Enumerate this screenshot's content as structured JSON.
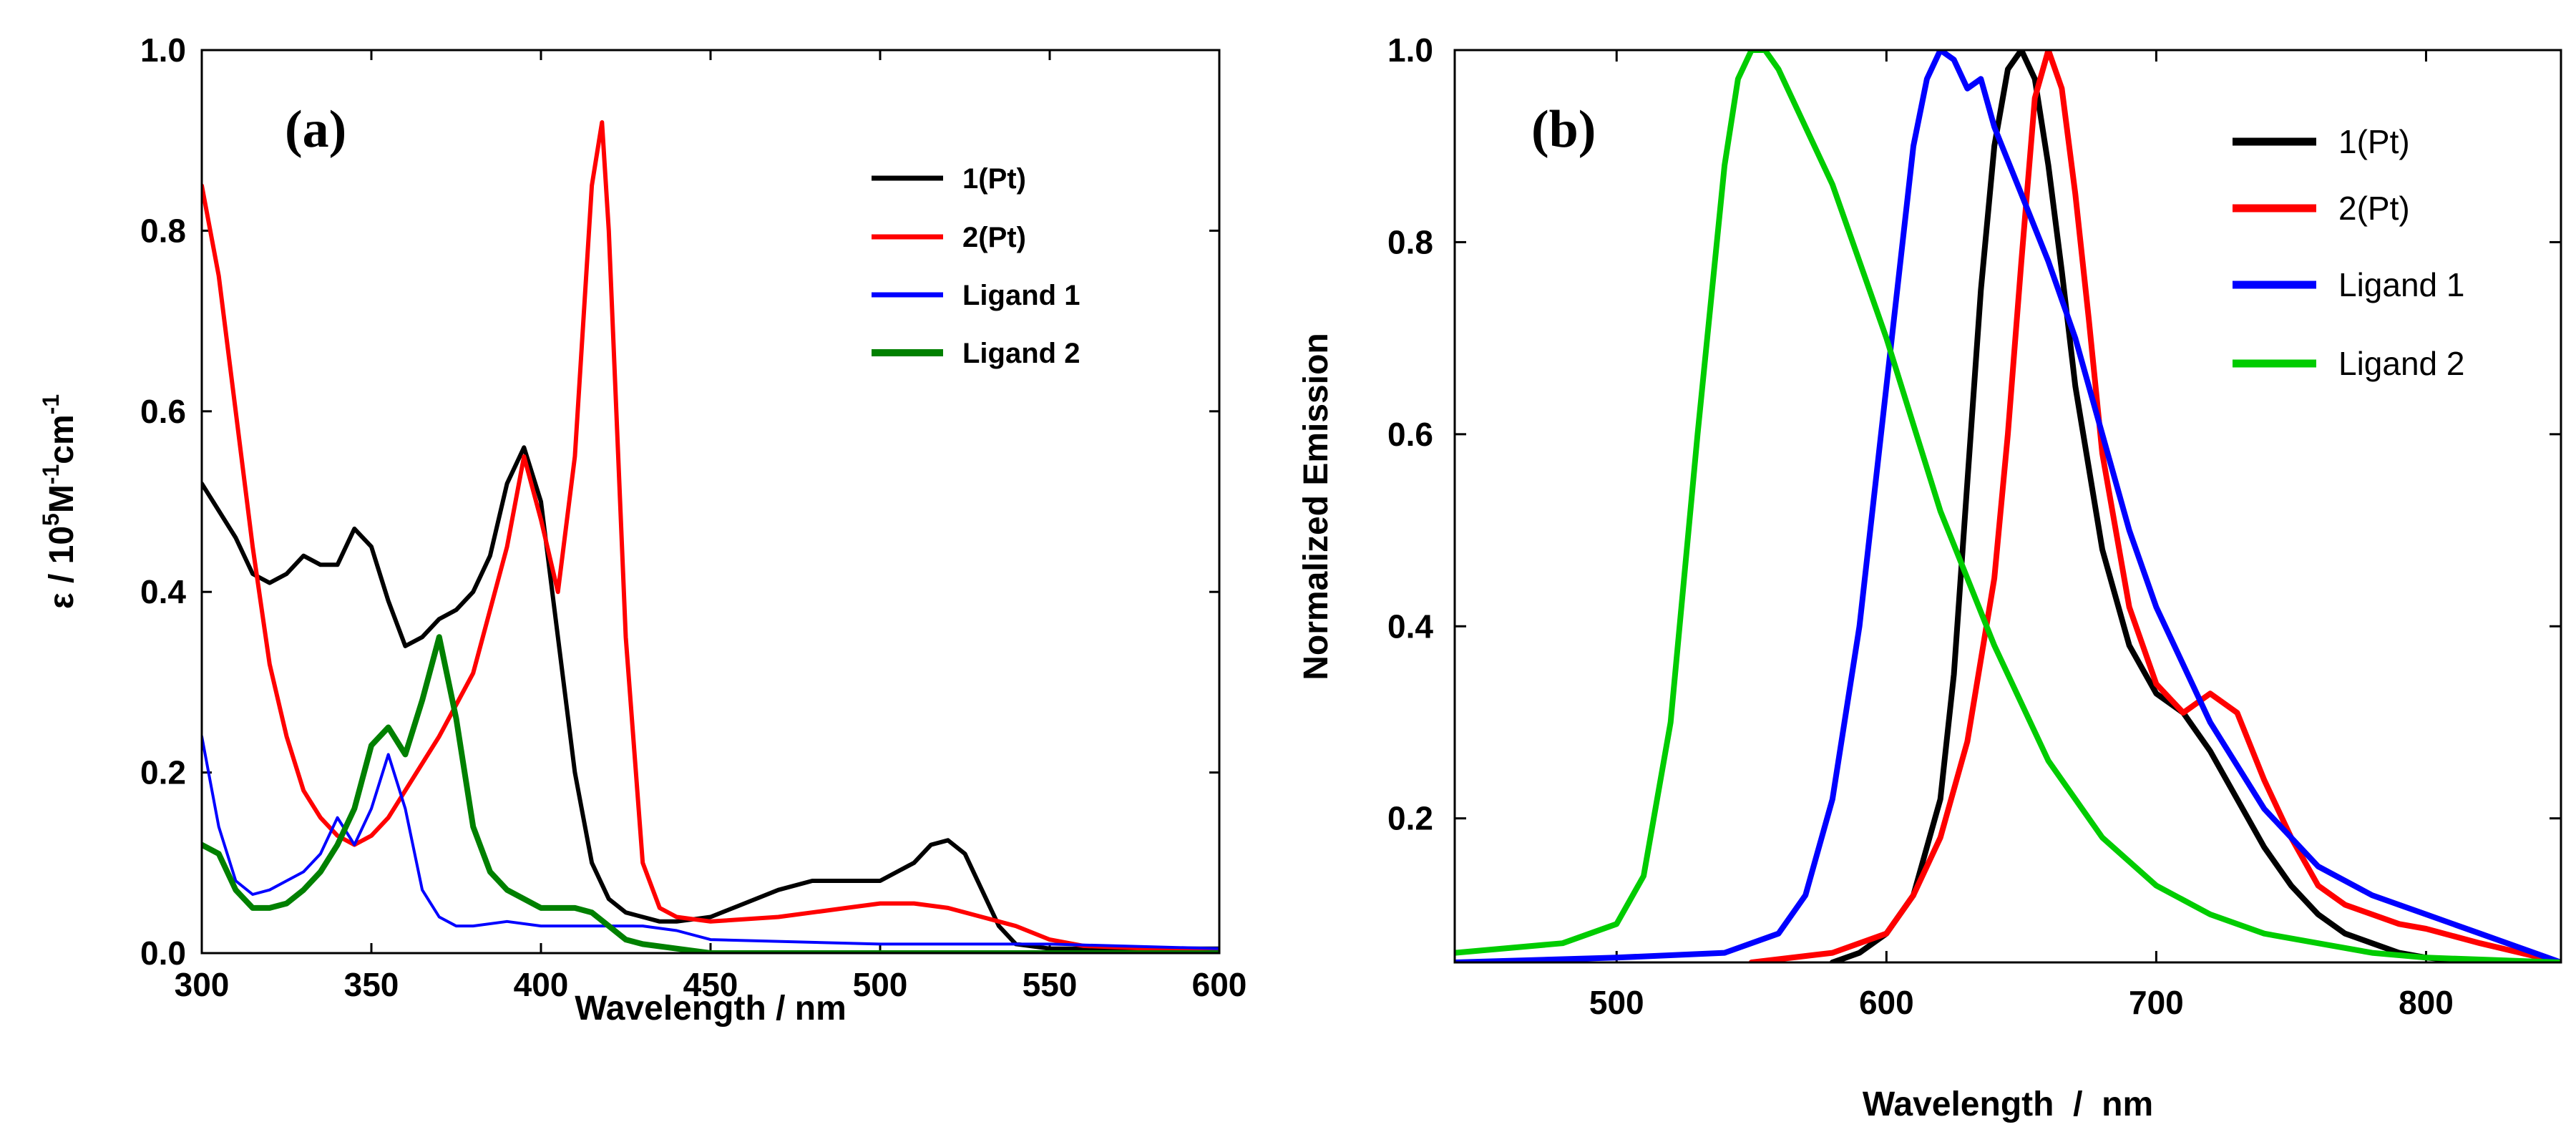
{
  "chart_data": [
    {
      "type": "line",
      "panel_label": "(a)",
      "xlabel": "Wavelength / nm",
      "ylabel": {
        "p1": "ε / 10",
        "sup1": "5",
        "p2": "M",
        "sup2": "-1",
        "p3": "cm",
        "sup3": "-1"
      },
      "xlim": [
        300,
        600
      ],
      "ylim": [
        0,
        1.0
      ],
      "xticks": [
        300,
        350,
        400,
        450,
        500,
        550,
        600
      ],
      "xtick_labels": [
        "300",
        "350",
        "400",
        "450",
        "500",
        "550",
        "600"
      ],
      "yticks": [
        0,
        0.2,
        0.4,
        0.6,
        0.8,
        1.0
      ],
      "ytick_labels": [
        "0.0",
        "0.2",
        "0.4",
        "0.6",
        "0.8",
        "1.0"
      ],
      "legend_position": "top-right",
      "series": [
        {
          "name": "1(Pt)",
          "color": "#000000",
          "x": [
            300,
            305,
            310,
            315,
            320,
            325,
            330,
            335,
            340,
            345,
            350,
            355,
            360,
            365,
            370,
            375,
            380,
            385,
            390,
            395,
            400,
            405,
            410,
            415,
            420,
            425,
            430,
            435,
            440,
            450,
            460,
            470,
            480,
            490,
            500,
            505,
            510,
            515,
            520,
            525,
            530,
            535,
            540,
            550,
            560,
            600
          ],
          "y": [
            0.52,
            0.49,
            0.46,
            0.42,
            0.41,
            0.42,
            0.44,
            0.43,
            0.43,
            0.47,
            0.45,
            0.39,
            0.34,
            0.35,
            0.37,
            0.38,
            0.4,
            0.44,
            0.52,
            0.56,
            0.5,
            0.35,
            0.2,
            0.1,
            0.06,
            0.045,
            0.04,
            0.035,
            0.035,
            0.04,
            0.055,
            0.07,
            0.08,
            0.08,
            0.08,
            0.09,
            0.1,
            0.12,
            0.125,
            0.11,
            0.07,
            0.03,
            0.01,
            0.005,
            0.005,
            0.005
          ]
        },
        {
          "name": "2(Pt)",
          "color": "#ff0000",
          "x": [
            300,
            305,
            310,
            315,
            320,
            325,
            330,
            335,
            340,
            345,
            350,
            355,
            360,
            370,
            380,
            390,
            395,
            400,
            405,
            410,
            415,
            418,
            420,
            425,
            430,
            435,
            440,
            450,
            470,
            490,
            500,
            510,
            520,
            530,
            540,
            550,
            560,
            580,
            600
          ],
          "y": [
            0.85,
            0.75,
            0.6,
            0.45,
            0.32,
            0.24,
            0.18,
            0.15,
            0.13,
            0.12,
            0.13,
            0.15,
            0.18,
            0.24,
            0.31,
            0.45,
            0.55,
            0.48,
            0.4,
            0.55,
            0.85,
            0.92,
            0.8,
            0.35,
            0.1,
            0.05,
            0.04,
            0.035,
            0.04,
            0.05,
            0.055,
            0.055,
            0.05,
            0.04,
            0.03,
            0.015,
            0.008,
            0.005,
            0.003
          ]
        },
        {
          "name": "Ligand 1",
          "color": "#0000ff",
          "x": [
            300,
            305,
            310,
            315,
            320,
            325,
            330,
            335,
            340,
            345,
            350,
            355,
            360,
            365,
            370,
            375,
            380,
            390,
            400,
            410,
            420,
            430,
            440,
            450,
            500,
            550,
            600
          ],
          "y": [
            0.24,
            0.14,
            0.08,
            0.065,
            0.07,
            0.08,
            0.09,
            0.11,
            0.15,
            0.12,
            0.16,
            0.22,
            0.16,
            0.07,
            0.04,
            0.03,
            0.03,
            0.035,
            0.03,
            0.03,
            0.03,
            0.03,
            0.025,
            0.015,
            0.01,
            0.01,
            0.005
          ]
        },
        {
          "name": "Ligand 2",
          "color": "#008000",
          "x": [
            300,
            305,
            310,
            315,
            320,
            325,
            330,
            335,
            340,
            345,
            350,
            355,
            360,
            365,
            370,
            375,
            380,
            385,
            390,
            400,
            410,
            415,
            420,
            425,
            430,
            440,
            450,
            500,
            550,
            600
          ],
          "y": [
            0.12,
            0.11,
            0.07,
            0.05,
            0.05,
            0.055,
            0.07,
            0.09,
            0.12,
            0.16,
            0.23,
            0.25,
            0.22,
            0.28,
            0.35,
            0.26,
            0.14,
            0.09,
            0.07,
            0.05,
            0.05,
            0.045,
            0.03,
            0.015,
            0.01,
            0.005,
            0.0,
            0.0,
            0.0,
            0.0
          ]
        }
      ]
    },
    {
      "type": "line",
      "panel_label": "(b)",
      "xlabel": "Wavelength  /  nm",
      "ylabel": "Normalized Emission",
      "xlim": [
        440,
        850
      ],
      "ylim": [
        0.05,
        1.0
      ],
      "xticks": [
        500,
        600,
        700,
        800
      ],
      "xtick_labels": [
        "500",
        "600",
        "700",
        "800"
      ],
      "yticks": [
        0.2,
        0.4,
        0.6,
        0.8,
        1.0
      ],
      "ytick_labels": [
        "0.2",
        "0.4",
        "0.6",
        "0.8",
        "1.0"
      ],
      "legend_position": "top-right",
      "series": [
        {
          "name": "1(Pt)",
          "color": "#000000",
          "x": [
            580,
            590,
            600,
            610,
            620,
            625,
            630,
            635,
            640,
            645,
            650,
            655,
            660,
            665,
            670,
            680,
            690,
            700,
            710,
            720,
            730,
            740,
            750,
            760,
            770,
            780,
            790,
            800,
            820,
            850
          ],
          "y": [
            0.05,
            0.06,
            0.08,
            0.12,
            0.22,
            0.35,
            0.55,
            0.75,
            0.9,
            0.98,
            1.0,
            0.97,
            0.88,
            0.77,
            0.65,
            0.48,
            0.38,
            0.33,
            0.31,
            0.27,
            0.22,
            0.17,
            0.13,
            0.1,
            0.08,
            0.07,
            0.06,
            0.055,
            0.05,
            0.05
          ]
        },
        {
          "name": "2(Pt)",
          "color": "#ff0000",
          "x": [
            550,
            580,
            600,
            610,
            620,
            630,
            640,
            645,
            650,
            655,
            660,
            665,
            670,
            675,
            680,
            690,
            700,
            710,
            720,
            730,
            740,
            750,
            760,
            770,
            780,
            790,
            800,
            820,
            850
          ],
          "y": [
            0.05,
            0.06,
            0.08,
            0.12,
            0.18,
            0.28,
            0.45,
            0.6,
            0.78,
            0.95,
            1.0,
            0.96,
            0.85,
            0.72,
            0.58,
            0.42,
            0.34,
            0.31,
            0.33,
            0.31,
            0.24,
            0.18,
            0.13,
            0.11,
            0.1,
            0.09,
            0.085,
            0.07,
            0.05
          ]
        },
        {
          "name": "Ligand 1",
          "color": "#0000ff",
          "x": [
            440,
            500,
            540,
            560,
            570,
            580,
            590,
            600,
            610,
            615,
            620,
            625,
            630,
            635,
            640,
            650,
            660,
            670,
            680,
            690,
            700,
            720,
            740,
            760,
            780,
            800,
            820,
            850
          ],
          "y": [
            0.05,
            0.055,
            0.06,
            0.08,
            0.12,
            0.22,
            0.4,
            0.65,
            0.9,
            0.97,
            1.0,
            0.99,
            0.96,
            0.97,
            0.92,
            0.85,
            0.78,
            0.7,
            0.6,
            0.5,
            0.42,
            0.3,
            0.21,
            0.15,
            0.12,
            0.1,
            0.08,
            0.05
          ]
        },
        {
          "name": "Ligand 2",
          "color": "#00cc00",
          "x": [
            440,
            480,
            500,
            510,
            520,
            530,
            540,
            545,
            550,
            555,
            560,
            565,
            570,
            580,
            590,
            600,
            610,
            620,
            640,
            660,
            680,
            700,
            720,
            740,
            760,
            780,
            800,
            850
          ],
          "y": [
            0.06,
            0.07,
            0.09,
            0.14,
            0.3,
            0.6,
            0.88,
            0.97,
            1.0,
            1.0,
            0.98,
            0.95,
            0.92,
            0.86,
            0.78,
            0.7,
            0.61,
            0.52,
            0.38,
            0.26,
            0.18,
            0.13,
            0.1,
            0.08,
            0.07,
            0.06,
            0.055,
            0.05
          ]
        }
      ]
    }
  ]
}
